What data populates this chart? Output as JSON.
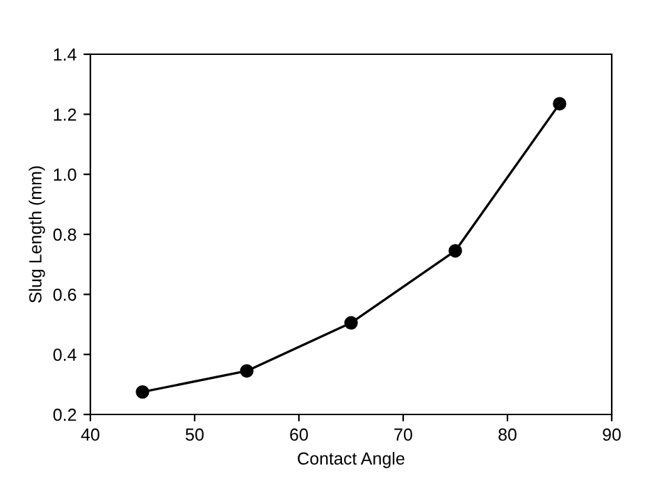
{
  "chart_data": {
    "type": "line",
    "xlabel": "Contact Angle",
    "ylabel": "Slug Length (mm)",
    "x": [
      45,
      55,
      65,
      75,
      85
    ],
    "series": [
      {
        "color": "#000000",
        "values": [
          0.275,
          0.345,
          0.505,
          0.745,
          1.235
        ]
      }
    ],
    "xlim": [
      40,
      90
    ],
    "xticks": [
      40,
      50,
      60,
      70,
      80,
      90
    ],
    "ylim": [
      0.2,
      1.4
    ],
    "yticks": [
      {
        "value": 0.2,
        "label": "0.2"
      },
      {
        "value": 0.4,
        "label": "0.4"
      },
      {
        "value": 0.6,
        "label": "0.6"
      },
      {
        "value": 0.8,
        "label": "0.8"
      },
      {
        "value": 1.0,
        "label": "1.0"
      },
      {
        "value": 1.2,
        "label": "1.2"
      },
      {
        "value": 1.4,
        "label": "1.4"
      }
    ],
    "grid": false,
    "marker": "circle",
    "line_style": "solid",
    "legend": false
  }
}
